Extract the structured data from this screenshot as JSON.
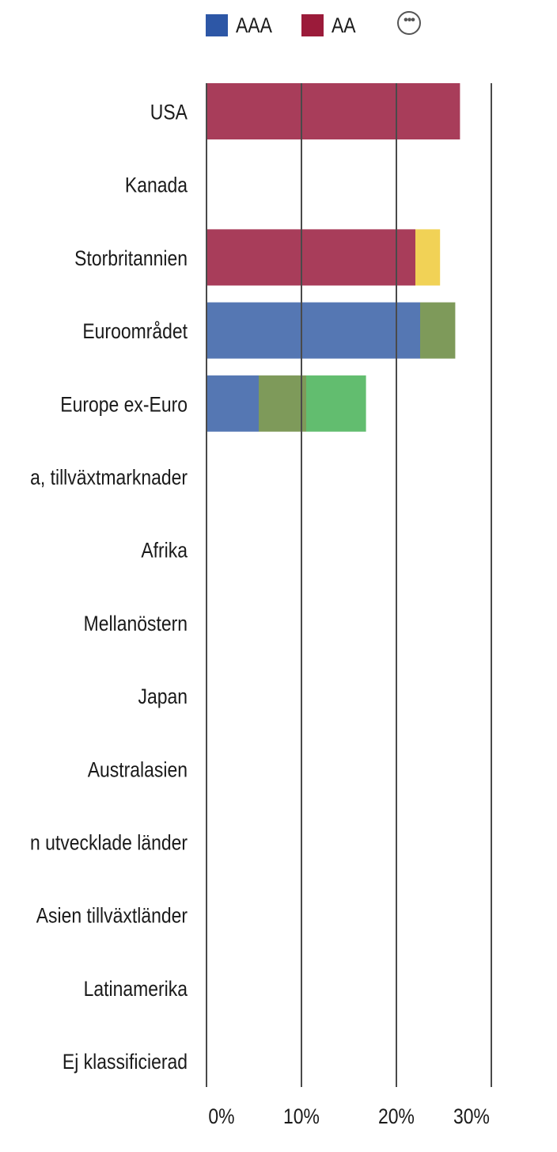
{
  "legend": [
    {
      "name": "AAA",
      "color": "#2D57A6"
    },
    {
      "name": "AA",
      "color": "#9B1B3A"
    }
  ],
  "more_icon": "ellipsis-circle-icon",
  "chart_data": {
    "type": "bar",
    "orientation": "horizontal",
    "stacked": true,
    "categories": [
      "USA",
      "Kanada",
      "Storbritannien",
      "Euroområdet",
      "Europe ex-Euro",
      "a, tillväxtmarknader",
      "Afrika",
      "Mellanöstern",
      "Japan",
      "Australasien",
      "n utvecklade länder",
      "Asien tillväxtländer",
      "Latinamerika",
      "Ej klassificierad"
    ],
    "series": [
      {
        "name": "AAA",
        "color": "#5577B3",
        "values": [
          0,
          0,
          0,
          22.5,
          5.5,
          0,
          0,
          0,
          0,
          0,
          0,
          0,
          0,
          0
        ]
      },
      {
        "name": "AA",
        "color": "#A83D5A",
        "values": [
          26.7,
          0,
          22,
          0,
          0,
          0,
          0,
          0,
          0,
          0,
          0,
          0,
          0,
          0
        ]
      },
      {
        "color": "#F1D256",
        "values": [
          0,
          0,
          2.6,
          0,
          0,
          0,
          0,
          0,
          0,
          0,
          0,
          0,
          0,
          0
        ]
      },
      {
        "color": "#7E9A5A",
        "values": [
          0,
          0,
          0,
          3.7,
          5.0,
          0,
          0,
          0,
          0,
          0,
          0,
          0,
          0,
          0
        ]
      },
      {
        "color": "#62BD6F",
        "values": [
          0,
          0,
          0,
          0,
          6.3,
          0,
          0,
          0,
          0,
          0,
          0,
          0,
          0,
          0
        ]
      }
    ],
    "xticks": [
      "0%",
      "10%",
      "20%",
      "30%"
    ],
    "xlim": [
      0,
      30
    ],
    "grid": true,
    "legend_position": "top"
  }
}
